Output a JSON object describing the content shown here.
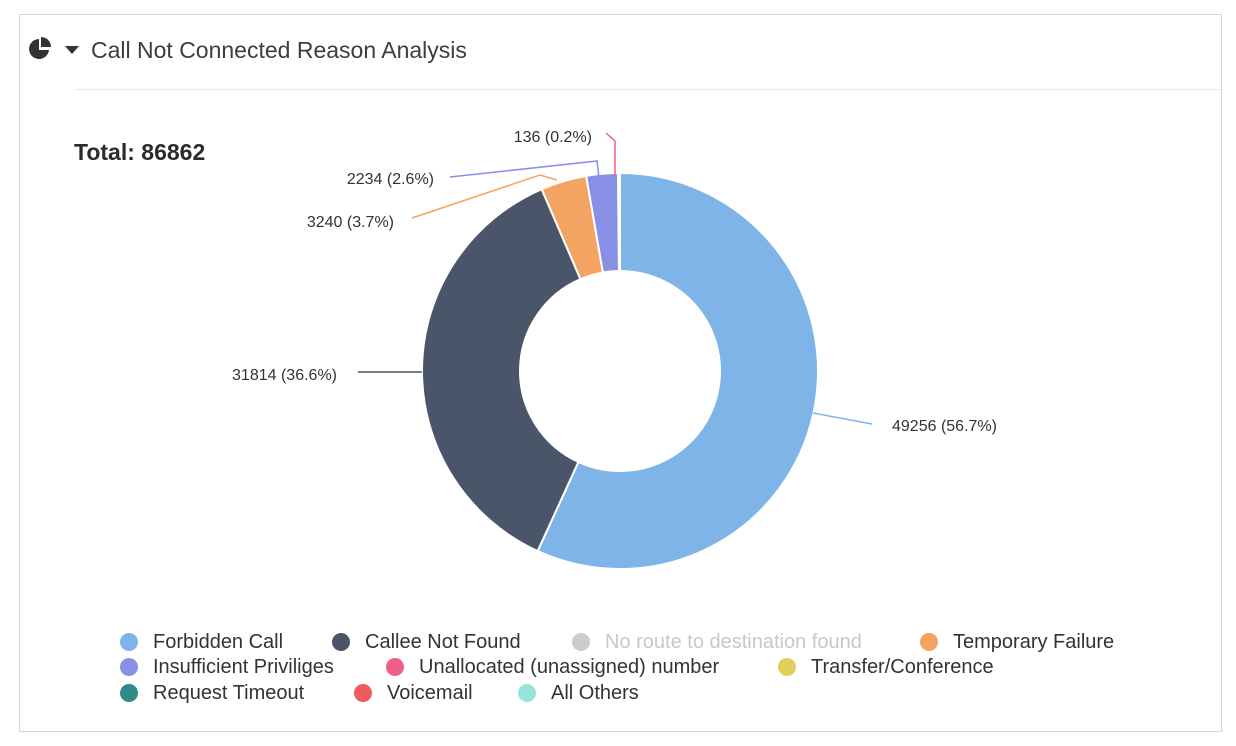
{
  "header": {
    "title": "Call Not Connected Reason Analysis",
    "chart_type_icon": "pie-chart-icon",
    "dropdown_icon": "caret-down-icon"
  },
  "total": {
    "label": "Total: 86862"
  },
  "chart_data": {
    "type": "pie",
    "donut": true,
    "title": "Call Not Connected Reason Analysis",
    "total": 86862,
    "slices": [
      {
        "name": "Forbidden Call",
        "value": 49256,
        "label": "49256 (56.7%)",
        "color": "#7fb4e8"
      },
      {
        "name": "Callee Not Found",
        "value": 31814,
        "label": "31814 (36.6%)",
        "color": "#4a5569"
      },
      {
        "name": "Temporary Failure",
        "value": 3240,
        "label": "3240 (3.7%)",
        "color": "#f4a462"
      },
      {
        "name": "Insufficient Priviliges",
        "value": 2234,
        "label": "2234 (2.6%)",
        "color": "#8890e6"
      },
      {
        "name": "Unallocated (unassigned) number",
        "value": 136,
        "label": "136 (0.2%)",
        "color": "#ed5f86"
      }
    ],
    "legend_placement": "bottom",
    "legend": [
      {
        "name": "Forbidden Call",
        "color": "#7fb4e8",
        "active": true
      },
      {
        "name": "Callee Not Found",
        "color": "#4a5569",
        "active": true
      },
      {
        "name": "No route to destination found",
        "color": "#cccccc",
        "active": false
      },
      {
        "name": "Temporary Failure",
        "color": "#f4a462",
        "active": true
      },
      {
        "name": "Insufficient Priviliges",
        "color": "#8890e6",
        "active": true
      },
      {
        "name": "Unallocated (unassigned) number",
        "color": "#ed5f86",
        "active": true
      },
      {
        "name": "Transfer/Conference",
        "color": "#e1cf5c",
        "active": true
      },
      {
        "name": "Request Timeout",
        "color": "#2e8b87",
        "active": true
      },
      {
        "name": "Voicemail",
        "color": "#ef5a5a",
        "active": true
      },
      {
        "name": "All Others",
        "color": "#93e5dc",
        "active": true
      }
    ]
  }
}
